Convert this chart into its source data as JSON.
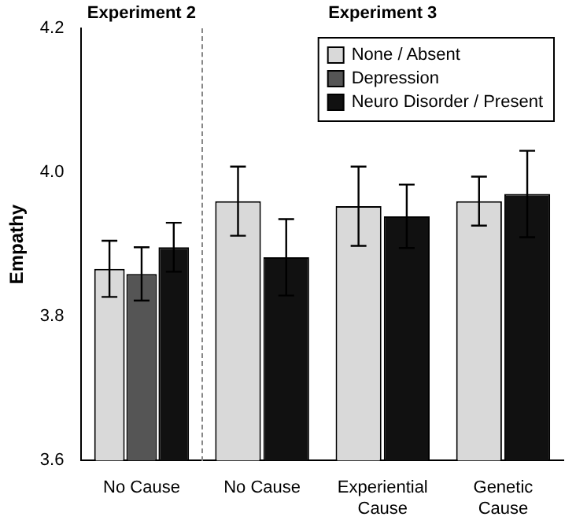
{
  "chart_data": {
    "type": "bar",
    "ylabel": "Empathy",
    "categories": [
      "No Cause",
      "No Cause",
      "Experiential Cause",
      "Genetic Cause"
    ],
    "series": [
      {
        "name": "None / Absent",
        "color": "#d9d9d9",
        "values": [
          3.866,
          3.96,
          3.953,
          3.96
        ],
        "errors": [
          0.039,
          0.048,
          0.055,
          0.034
        ]
      },
      {
        "name": "Depression",
        "color": "#555555",
        "values": [
          3.859,
          null,
          null,
          null
        ],
        "errors": [
          0.037,
          null,
          null,
          null
        ]
      },
      {
        "name": "Neuro Disorder / Present",
        "color": "#111111",
        "values": [
          3.896,
          3.882,
          3.939,
          3.97
        ],
        "errors": [
          0.034,
          0.053,
          0.044,
          0.06
        ]
      }
    ],
    "ylim": [
      3.6,
      4.2
    ],
    "yticks": [
      3.6,
      3.8,
      {
        "value": 4,
        "label": "4.0"
      },
      4.2
    ],
    "grid": false,
    "legend": "top right",
    "annotations": [
      "Experiment 2",
      "Experiment 3"
    ]
  }
}
